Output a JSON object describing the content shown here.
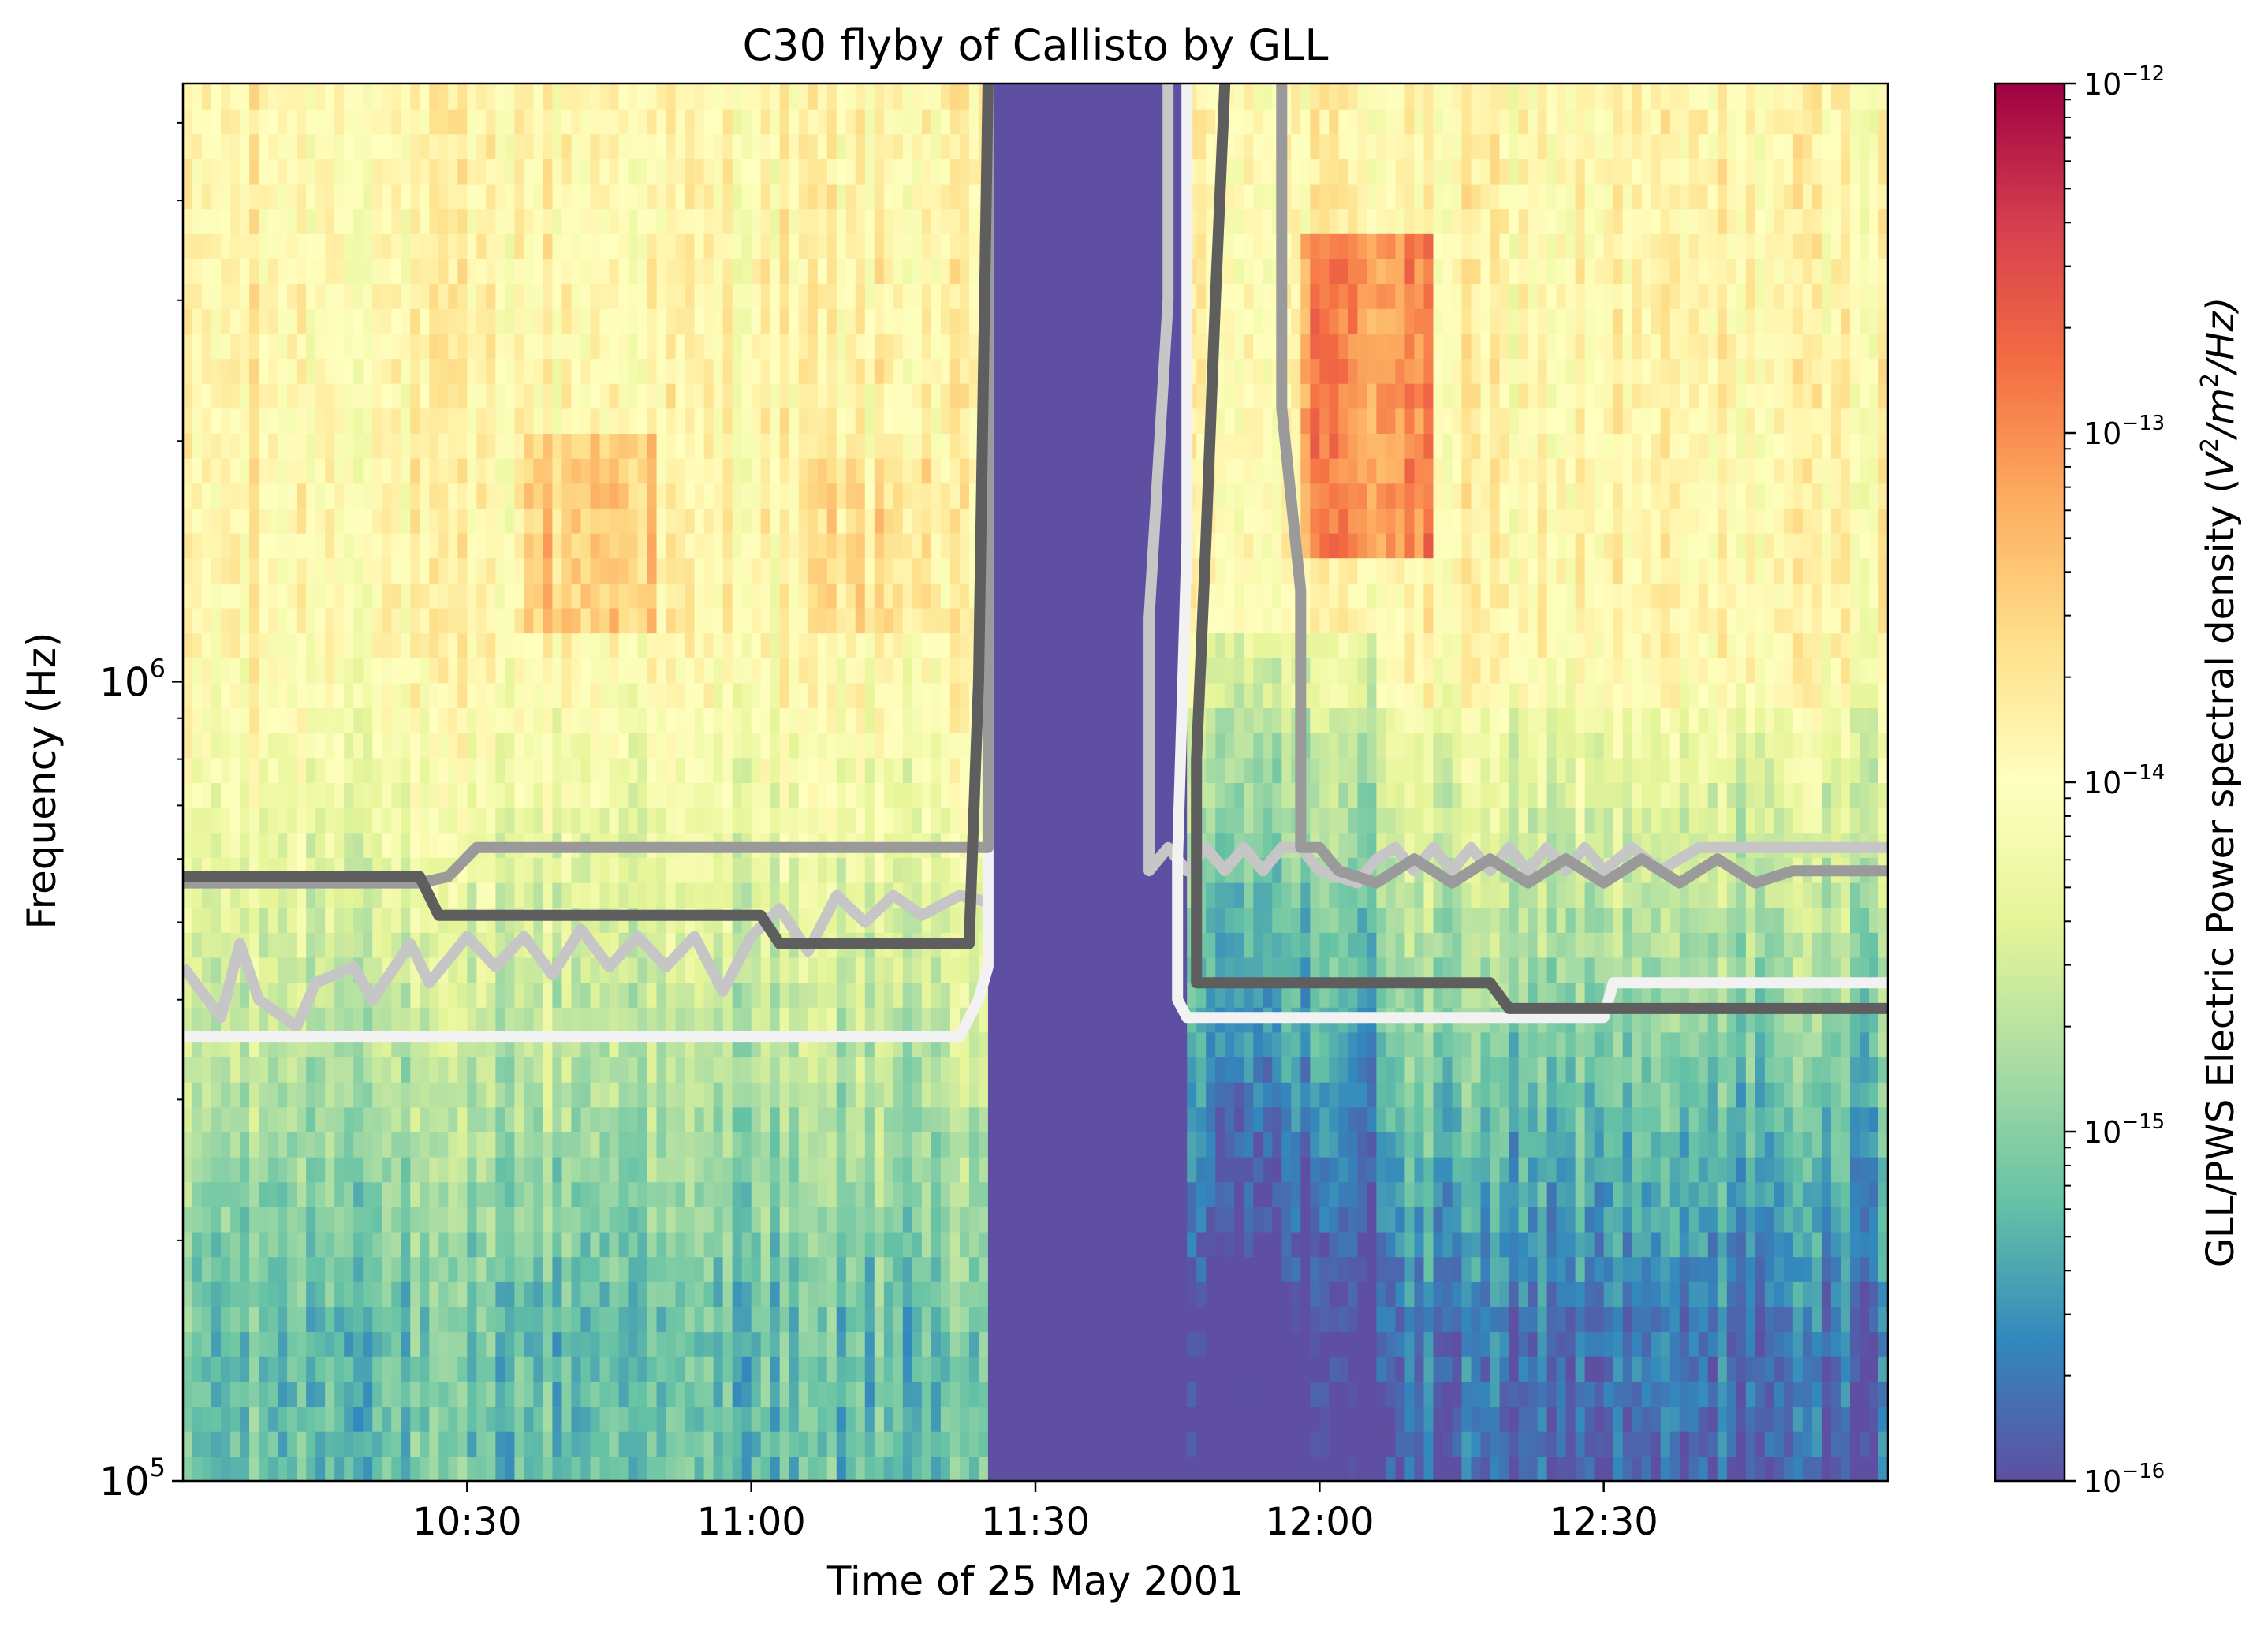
{
  "chart_data": {
    "type": "heatmap",
    "title": "C30 flyby of Callisto by GLL",
    "xlabel": "Time of 25 May 2001",
    "ylabel": "Frequency (Hz)",
    "x_ticks": [
      "10:30",
      "11:00",
      "11:30",
      "12:00",
      "12:30"
    ],
    "x_range": [
      "10:00",
      "13:00"
    ],
    "y_scale": "log",
    "y_range": [
      100000,
      5600000
    ],
    "y_ticks": [
      {
        "base": "10",
        "exp": "5",
        "value": 100000
      },
      {
        "base": "10",
        "exp": "6",
        "value": 1000000
      }
    ],
    "colorbar": {
      "label_prefix": "GLL/PWS Electric Power spectral density (",
      "label_V": "V",
      "label_sq1": "2",
      "label_mid": "/m",
      "label_sq2": "2",
      "label_suffix": "/Hz)",
      "scale": "log",
      "colormap": "Spectral_r",
      "range": [
        1e-16,
        1e-12
      ],
      "ticks": [
        {
          "base": "10",
          "exp": "−12",
          "value": 1e-12
        },
        {
          "base": "10",
          "exp": "−13",
          "value": 1e-13
        },
        {
          "base": "10",
          "exp": "−14",
          "value": 1e-14
        },
        {
          "base": "10",
          "exp": "−15",
          "value": 1e-15
        },
        {
          "base": "10",
          "exp": "−16",
          "value": 1e-16
        }
      ]
    },
    "gap_interval": [
      "11:25",
      "11:46"
    ],
    "enhanced_emission": [
      "11:58",
      "12:12"
    ],
    "overlay_lines": [
      {
        "color": "#c6c6c6",
        "points": [
          [
            "10:00",
            440000
          ],
          [
            "10:04",
            380000
          ],
          [
            "10:06",
            470000
          ],
          [
            "10:08",
            400000
          ],
          [
            "10:12",
            370000
          ],
          [
            "10:14",
            420000
          ],
          [
            "10:18",
            440000
          ],
          [
            "10:20",
            400000
          ],
          [
            "10:24",
            470000
          ],
          [
            "10:26",
            420000
          ],
          [
            "10:30",
            480000
          ],
          [
            "10:33",
            440000
          ],
          [
            "10:36",
            480000
          ],
          [
            "10:39",
            430000
          ],
          [
            "10:42",
            490000
          ],
          [
            "10:45",
            440000
          ],
          [
            "10:48",
            480000
          ],
          [
            "10:51",
            440000
          ],
          [
            "10:54",
            480000
          ],
          [
            "10:57",
            410000
          ],
          [
            "11:00",
            480000
          ],
          [
            "11:03",
            520000
          ],
          [
            "11:06",
            460000
          ],
          [
            "11:09",
            540000
          ],
          [
            "11:12",
            500000
          ],
          [
            "11:15",
            540000
          ],
          [
            "11:18",
            510000
          ],
          [
            "11:22",
            540000
          ],
          [
            "11:25",
            530000
          ]
        ]
      },
      {
        "color": "#f2f2f2",
        "points": [
          [
            "10:00",
            360000
          ],
          [
            "11:22",
            360000
          ],
          [
            "11:24",
            400000
          ],
          [
            "11:25",
            440000
          ],
          [
            "11:25",
            5600000
          ]
        ]
      },
      {
        "color": "#9a9a9a",
        "points": [
          [
            "10:00",
            560000
          ],
          [
            "10:25",
            560000
          ],
          [
            "10:28",
            570000
          ],
          [
            "10:31",
            620000
          ],
          [
            "11:25",
            620000
          ],
          [
            "11:25",
            5600000
          ]
        ]
      },
      {
        "color": "#5e5e5e",
        "points": [
          [
            "10:00",
            570000
          ],
          [
            "10:25",
            570000
          ],
          [
            "10:27",
            510000
          ],
          [
            "11:01",
            510000
          ],
          [
            "11:03",
            470000
          ],
          [
            "11:23",
            470000
          ],
          [
            "11:24",
            1000000
          ],
          [
            "11:25",
            5600000
          ]
        ]
      },
      {
        "color": "#c6c6c6",
        "points": [
          [
            "11:44",
            5600000
          ],
          [
            "11:44",
            3000000
          ],
          [
            "11:42",
            1200000
          ],
          [
            "11:42",
            580000
          ],
          [
            "11:44",
            620000
          ],
          [
            "11:46",
            580000
          ],
          [
            "11:48",
            620000
          ],
          [
            "11:50",
            580000
          ],
          [
            "11:52",
            620000
          ],
          [
            "11:54",
            580000
          ],
          [
            "11:56",
            620000
          ],
          [
            "11:58",
            620000
          ],
          [
            "12:00",
            580000
          ],
          [
            "12:04",
            560000
          ],
          [
            "12:06",
            600000
          ],
          [
            "12:08",
            620000
          ],
          [
            "12:10",
            580000
          ],
          [
            "12:12",
            620000
          ],
          [
            "12:14",
            580000
          ],
          [
            "12:16",
            620000
          ],
          [
            "12:18",
            580000
          ],
          [
            "12:20",
            620000
          ],
          [
            "12:22",
            580000
          ],
          [
            "12:24",
            620000
          ],
          [
            "12:26",
            580000
          ],
          [
            "12:28",
            620000
          ],
          [
            "12:30",
            580000
          ],
          [
            "12:33",
            620000
          ],
          [
            "12:36",
            580000
          ],
          [
            "12:40",
            620000
          ],
          [
            "12:50",
            620000
          ],
          [
            "13:00",
            620000
          ]
        ]
      },
      {
        "color": "#f2f2f2",
        "points": [
          [
            "11:46",
            5600000
          ],
          [
            "11:46",
            1500000
          ],
          [
            "11:45",
            600000
          ],
          [
            "11:45",
            400000
          ],
          [
            "11:46",
            380000
          ],
          [
            "12:30",
            380000
          ],
          [
            "12:31",
            420000
          ],
          [
            "13:00",
            420000
          ]
        ]
      },
      {
        "color": "#9a9a9a",
        "points": [
          [
            "11:56",
            5600000
          ],
          [
            "11:56",
            2200000
          ],
          [
            "11:58",
            1300000
          ],
          [
            "11:58",
            620000
          ],
          [
            "12:00",
            620000
          ],
          [
            "12:02",
            580000
          ],
          [
            "12:06",
            560000
          ],
          [
            "12:10",
            600000
          ],
          [
            "12:14",
            560000
          ],
          [
            "12:18",
            600000
          ],
          [
            "12:22",
            560000
          ],
          [
            "12:26",
            600000
          ],
          [
            "12:30",
            560000
          ],
          [
            "12:34",
            600000
          ],
          [
            "12:38",
            560000
          ],
          [
            "12:42",
            600000
          ],
          [
            "12:46",
            560000
          ],
          [
            "12:50",
            580000
          ],
          [
            "13:00",
            580000
          ]
        ]
      },
      {
        "color": "#5e5e5e",
        "points": [
          [
            "11:50",
            5600000
          ],
          [
            "11:49",
            3000000
          ],
          [
            "11:48",
            1500000
          ],
          [
            "11:47",
            800000
          ],
          [
            "11:47",
            420000
          ],
          [
            "11:48",
            420000
          ],
          [
            "12:18",
            420000
          ],
          [
            "12:20",
            390000
          ],
          [
            "13:00",
            390000
          ]
        ]
      }
    ]
  }
}
